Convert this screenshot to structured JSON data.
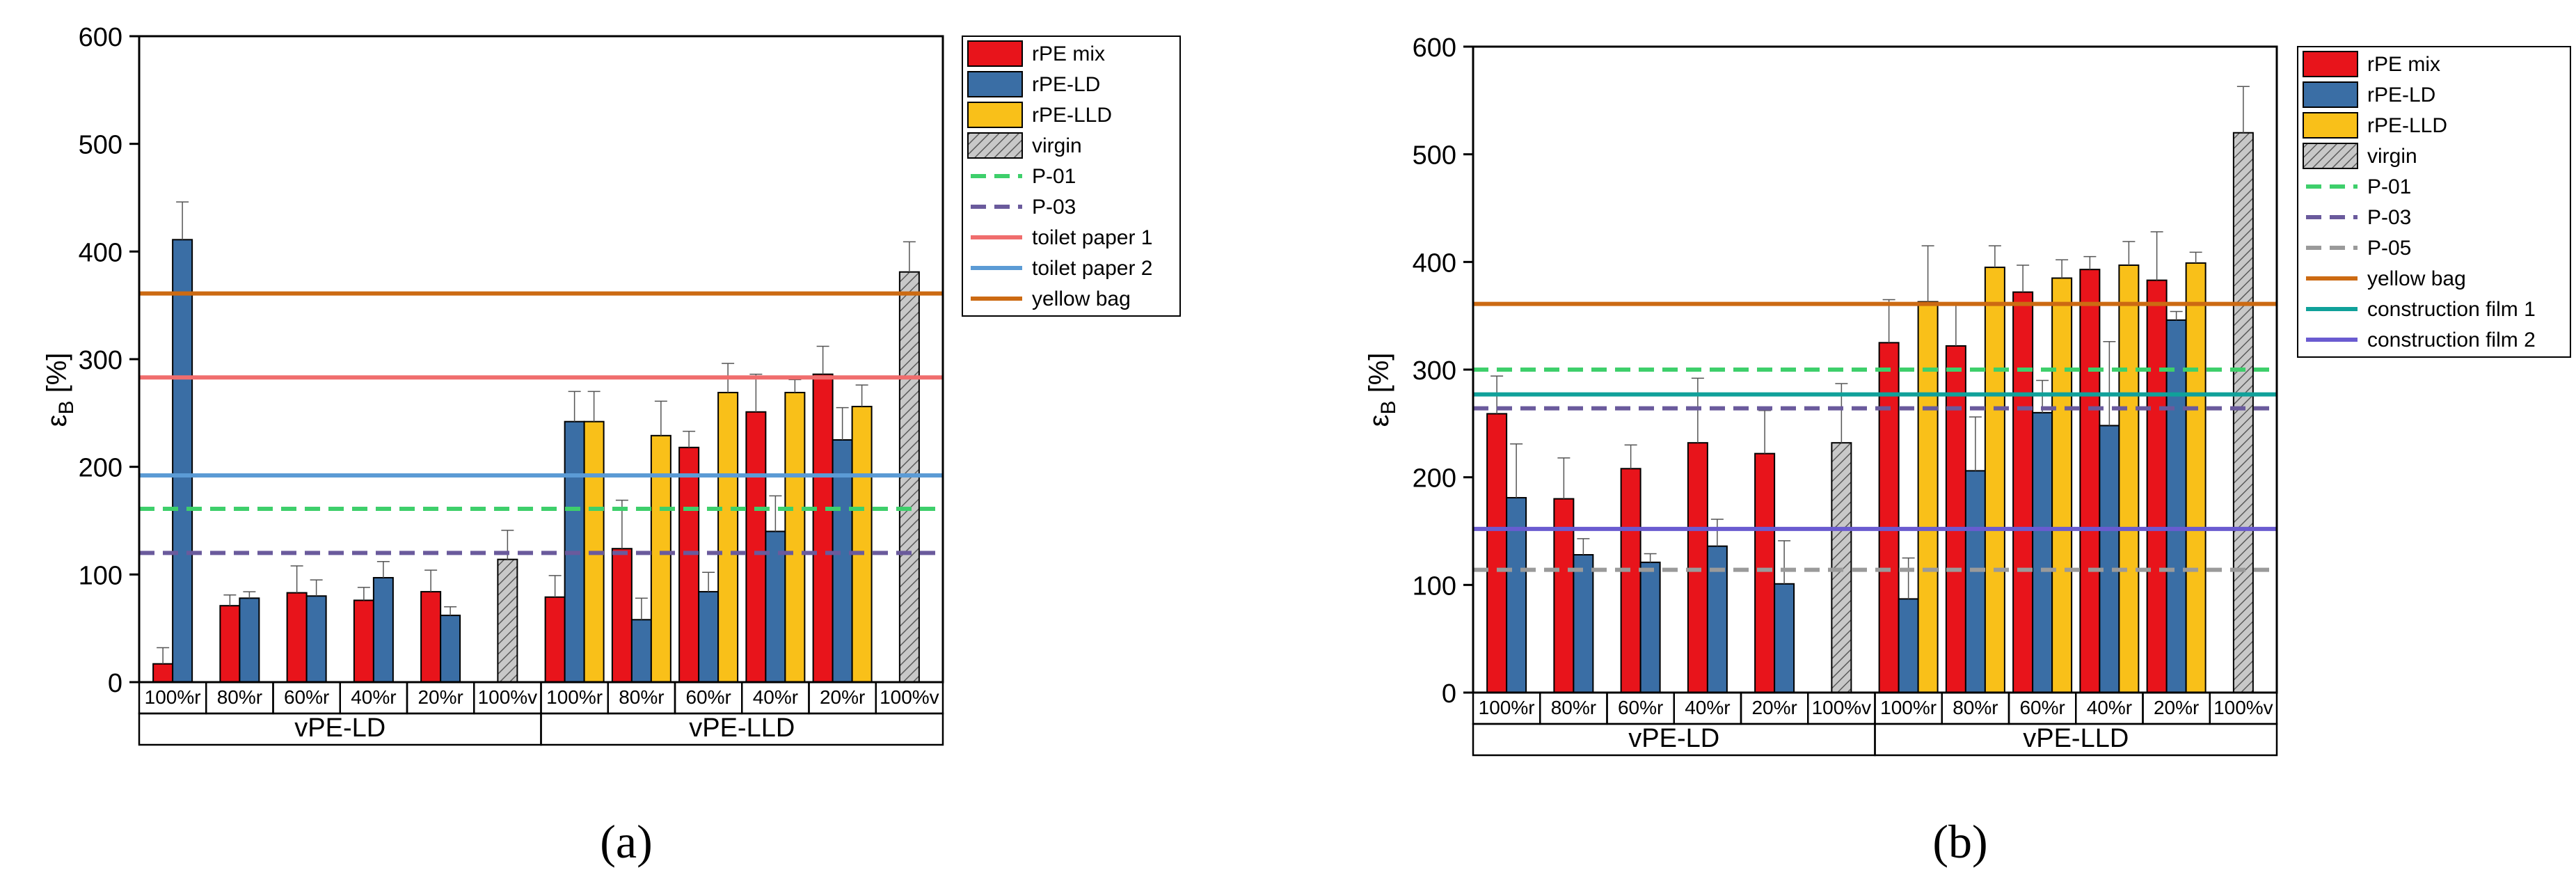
{
  "colors": {
    "rpe_mix": "#e8141b",
    "rpe_ld": "#3a6ea5",
    "rpe_lld": "#f9c019",
    "virgin": "#c8c8c8",
    "p01": "#3ecf6b",
    "p03": "#6a5a9c",
    "p05": "#9a9a9a",
    "toilet_paper_1": "#f06d6d",
    "toilet_paper_2": "#5b9bd5",
    "yellow_bag": "#cc6a12",
    "construction_film_1": "#10a19a",
    "construction_film_2": "#6a5bd0"
  },
  "chart_data": [
    {
      "panel_label": "(a)",
      "type": "bar",
      "ylabel_main": "ε",
      "ylabel_sub": "B",
      "ylabel_unit": " [%]",
      "ylim": [
        0,
        600
      ],
      "yticks": [
        0,
        100,
        200,
        300,
        400,
        500,
        600
      ],
      "groups": [
        {
          "name": "vPE-LD",
          "categories": [
            {
              "label": "100%r",
              "bars": [
                {
                  "series": "rPE mix",
                  "value": 17,
                  "err": 15
                },
                {
                  "series": "rPE-LD",
                  "value": 411,
                  "err": 35
                }
              ]
            },
            {
              "label": "80%r",
              "bars": [
                {
                  "series": "rPE mix",
                  "value": 71,
                  "err": 10
                },
                {
                  "series": "rPE-LD",
                  "value": 78,
                  "err": 6
                }
              ]
            },
            {
              "label": "60%r",
              "bars": [
                {
                  "series": "rPE mix",
                  "value": 83,
                  "err": 25
                },
                {
                  "series": "rPE-LD",
                  "value": 80,
                  "err": 15
                }
              ]
            },
            {
              "label": "40%r",
              "bars": [
                {
                  "series": "rPE mix",
                  "value": 76,
                  "err": 12
                },
                {
                  "series": "rPE-LD",
                  "value": 97,
                  "err": 15
                }
              ]
            },
            {
              "label": "20%r",
              "bars": [
                {
                  "series": "rPE mix",
                  "value": 84,
                  "err": 20
                },
                {
                  "series": "rPE-LD",
                  "value": 62,
                  "err": 8
                }
              ]
            },
            {
              "label": "100%v",
              "bars": [
                {
                  "series": "virgin",
                  "value": 114,
                  "err": 27
                }
              ]
            }
          ]
        },
        {
          "name": "vPE-LLD",
          "categories": [
            {
              "label": "100%r",
              "bars": [
                {
                  "series": "rPE mix",
                  "value": 79,
                  "err": 20
                },
                {
                  "series": "rPE-LD",
                  "value": 242,
                  "err": 28
                },
                {
                  "series": "rPE-LLD",
                  "value": 242,
                  "err": 28
                }
              ]
            },
            {
              "label": "80%r",
              "bars": [
                {
                  "series": "rPE mix",
                  "value": 124,
                  "err": 45
                },
                {
                  "series": "rPE-LD",
                  "value": 58,
                  "err": 20
                },
                {
                  "series": "rPE-LLD",
                  "value": 229,
                  "err": 32
                }
              ]
            },
            {
              "label": "60%r",
              "bars": [
                {
                  "series": "rPE mix",
                  "value": 218,
                  "err": 15
                },
                {
                  "series": "rPE-LD",
                  "value": 84,
                  "err": 18
                },
                {
                  "series": "rPE-LLD",
                  "value": 269,
                  "err": 27
                }
              ]
            },
            {
              "label": "40%r",
              "bars": [
                {
                  "series": "rPE mix",
                  "value": 251,
                  "err": 35
                },
                {
                  "series": "rPE-LD",
                  "value": 140,
                  "err": 33
                },
                {
                  "series": "rPE-LLD",
                  "value": 269,
                  "err": 12
                }
              ]
            },
            {
              "label": "20%r",
              "bars": [
                {
                  "series": "rPE mix",
                  "value": 286,
                  "err": 26
                },
                {
                  "series": "rPE-LD",
                  "value": 225,
                  "err": 30
                },
                {
                  "series": "rPE-LLD",
                  "value": 256,
                  "err": 20
                }
              ]
            },
            {
              "label": "100%v",
              "bars": [
                {
                  "series": "virgin",
                  "value": 381,
                  "err": 28
                }
              ]
            }
          ]
        }
      ],
      "reference_lines": [
        {
          "name": "P-01",
          "value": 161,
          "style": "dashed",
          "color_key": "p01"
        },
        {
          "name": "P-03",
          "value": 120,
          "style": "dashed",
          "color_key": "p03"
        },
        {
          "name": "toilet paper 1",
          "value": 283,
          "style": "solid",
          "color_key": "toilet_paper_1"
        },
        {
          "name": "toilet paper 2",
          "value": 192,
          "style": "solid",
          "color_key": "toilet_paper_2"
        },
        {
          "name": "yellow bag",
          "value": 361,
          "style": "solid",
          "color_key": "yellow_bag"
        }
      ],
      "legend": [
        "rPE mix",
        "rPE-LD",
        "rPE-LLD",
        "virgin",
        "P-01",
        "P-03",
        "toilet paper 1",
        "toilet paper 2",
        "yellow bag"
      ]
    },
    {
      "panel_label": "(b)",
      "type": "bar",
      "ylabel_main": "ε",
      "ylabel_sub": "B",
      "ylabel_unit": " [%]",
      "ylim": [
        0,
        600
      ],
      "yticks": [
        0,
        100,
        200,
        300,
        400,
        500,
        600
      ],
      "groups": [
        {
          "name": "vPE-LD",
          "categories": [
            {
              "label": "100%r",
              "bars": [
                {
                  "series": "rPE mix",
                  "value": 259,
                  "err": 35
                },
                {
                  "series": "rPE-LD",
                  "value": 181,
                  "err": 50
                }
              ]
            },
            {
              "label": "80%r",
              "bars": [
                {
                  "series": "rPE mix",
                  "value": 180,
                  "err": 38
                },
                {
                  "series": "rPE-LD",
                  "value": 128,
                  "err": 15
                }
              ]
            },
            {
              "label": "60%r",
              "bars": [
                {
                  "series": "rPE mix",
                  "value": 208,
                  "err": 22
                },
                {
                  "series": "rPE-LD",
                  "value": 121,
                  "err": 8
                }
              ]
            },
            {
              "label": "40%r",
              "bars": [
                {
                  "series": "rPE mix",
                  "value": 232,
                  "err": 60
                },
                {
                  "series": "rPE-LD",
                  "value": 136,
                  "err": 25
                }
              ]
            },
            {
              "label": "20%r",
              "bars": [
                {
                  "series": "rPE mix",
                  "value": 222,
                  "err": 40
                },
                {
                  "series": "rPE-LD",
                  "value": 101,
                  "err": 40
                }
              ]
            },
            {
              "label": "100%v",
              "bars": [
                {
                  "series": "virgin",
                  "value": 232,
                  "err": 55
                }
              ]
            }
          ]
        },
        {
          "name": "vPE-LLD",
          "categories": [
            {
              "label": "100%r",
              "bars": [
                {
                  "series": "rPE mix",
                  "value": 325,
                  "err": 40
                },
                {
                  "series": "rPE-LD",
                  "value": 87,
                  "err": 38
                },
                {
                  "series": "rPE-LLD",
                  "value": 363,
                  "err": 52
                }
              ]
            },
            {
              "label": "80%r",
              "bars": [
                {
                  "series": "rPE mix",
                  "value": 322,
                  "err": 40
                },
                {
                  "series": "rPE-LD",
                  "value": 206,
                  "err": 50
                },
                {
                  "series": "rPE-LLD",
                  "value": 395,
                  "err": 20
                }
              ]
            },
            {
              "label": "60%r",
              "bars": [
                {
                  "series": "rPE mix",
                  "value": 372,
                  "err": 25
                },
                {
                  "series": "rPE-LD",
                  "value": 260,
                  "err": 30
                },
                {
                  "series": "rPE-LLD",
                  "value": 385,
                  "err": 17
                }
              ]
            },
            {
              "label": "40%r",
              "bars": [
                {
                  "series": "rPE mix",
                  "value": 393,
                  "err": 12
                },
                {
                  "series": "rPE-LD",
                  "value": 248,
                  "err": 78
                },
                {
                  "series": "rPE-LLD",
                  "value": 397,
                  "err": 22
                }
              ]
            },
            {
              "label": "20%r",
              "bars": [
                {
                  "series": "rPE mix",
                  "value": 383,
                  "err": 45
                },
                {
                  "series": "rPE-LD",
                  "value": 346,
                  "err": 8
                },
                {
                  "series": "rPE-LLD",
                  "value": 399,
                  "err": 10
                }
              ]
            },
            {
              "label": "100%v",
              "bars": [
                {
                  "series": "virgin",
                  "value": 520,
                  "err": 43
                }
              ]
            }
          ]
        }
      ],
      "reference_lines": [
        {
          "name": "P-01",
          "value": 300,
          "style": "dashed",
          "color_key": "p01"
        },
        {
          "name": "P-03",
          "value": 264,
          "style": "dashed",
          "color_key": "p03"
        },
        {
          "name": "P-05",
          "value": 114,
          "style": "dashed",
          "color_key": "p05"
        },
        {
          "name": "yellow bag",
          "value": 361,
          "style": "solid",
          "color_key": "yellow_bag"
        },
        {
          "name": "construction film 1",
          "value": 277,
          "style": "solid",
          "color_key": "construction_film_1"
        },
        {
          "name": "construction film 2",
          "value": 152,
          "style": "solid",
          "color_key": "construction_film_2"
        }
      ],
      "legend": [
        "rPE mix",
        "rPE-LD",
        "rPE-LLD",
        "virgin",
        "P-01",
        "P-03",
        "P-05",
        "yellow bag",
        "construction film 1",
        "construction film 2"
      ]
    }
  ]
}
